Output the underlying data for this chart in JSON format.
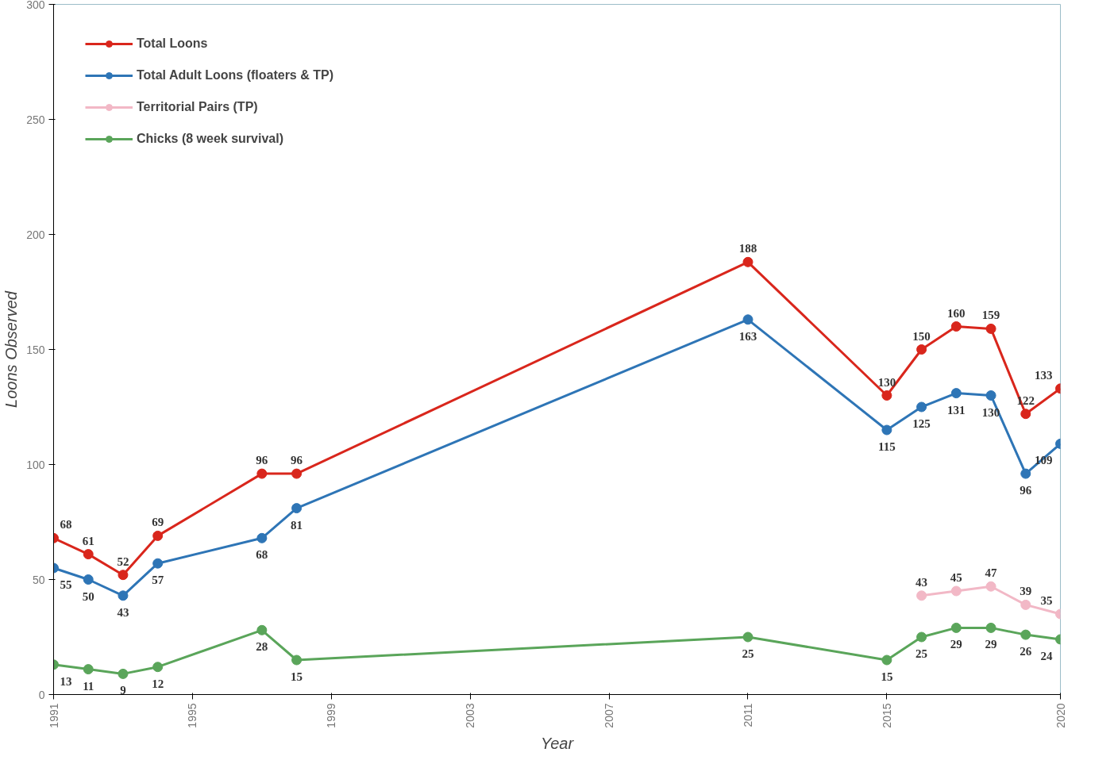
{
  "chart_data": {
    "type": "line",
    "xlabel": "Year",
    "ylabel": "Loons Observed",
    "xlim": [
      1991,
      2020
    ],
    "xticks": [
      1991,
      1995,
      1999,
      2003,
      2007,
      2011,
      2015,
      2020
    ],
    "ylim": [
      0,
      300
    ],
    "yticks": [
      0,
      50,
      100,
      150,
      200,
      250,
      300
    ],
    "x": [
      1991,
      1992,
      1993,
      1994,
      1997,
      1998,
      2011,
      2015,
      2016,
      2017,
      2018,
      2019,
      2020
    ],
    "series": [
      {
        "name": "Total Loons",
        "color": "#d9261c",
        "values": [
          68,
          61,
          52,
          69,
          96,
          96,
          188,
          130,
          150,
          160,
          159,
          122,
          133
        ]
      },
      {
        "name": "Total Adult Loons (floaters & TP)",
        "color": "#2e75b6",
        "values": [
          55,
          50,
          43,
          57,
          68,
          81,
          163,
          115,
          125,
          131,
          130,
          96,
          109
        ]
      },
      {
        "name": "Territorial Pairs (TP)",
        "color": "#f2b8c6",
        "x": [
          2016,
          2017,
          2018,
          2019,
          2020
        ],
        "values": [
          43,
          45,
          47,
          39,
          35
        ]
      },
      {
        "name": "Chicks (8 week survival)",
        "color": "#5aa55a",
        "values": [
          13,
          11,
          9,
          12,
          28,
          15,
          25,
          15,
          25,
          29,
          29,
          26,
          24
        ]
      }
    ],
    "data_labels": true,
    "marker": "circle",
    "line_style": "solid",
    "grid": false,
    "legend": "top left"
  }
}
